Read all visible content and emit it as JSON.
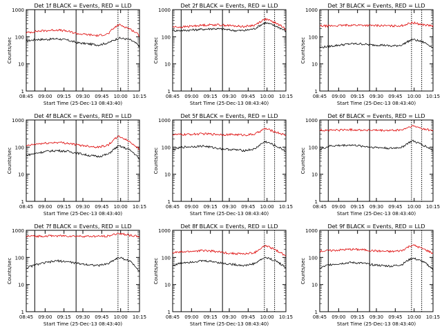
{
  "figure": {
    "xlabel": "Start Time (25-Dec-13 08:43:40)",
    "ylabel": "Counts/sec",
    "colors": {
      "events": "#000000",
      "lld": "#dd0000",
      "axes": "#000000",
      "background": "#ffffff"
    },
    "x_ticks": [
      "08:45",
      "09:00",
      "09:15",
      "09:30",
      "09:45",
      "10:00",
      "10:15"
    ],
    "y_ticks": [
      "1",
      "10",
      "100",
      "1000"
    ]
  },
  "chart_data": [
    {
      "type": "line",
      "title": "Det 1f BLACK = Events, RED = LLD",
      "ylim": [
        1,
        1000
      ],
      "scale": "log",
      "series": [
        {
          "name": "BLACK = Events",
          "values": [
            70,
            80,
            80,
            85,
            75,
            60,
            55,
            50,
            60,
            90,
            80,
            45
          ]
        },
        {
          "name": "RED = LLD",
          "values": [
            140,
            160,
            170,
            180,
            160,
            130,
            120,
            110,
            130,
            280,
            200,
            110
          ]
        }
      ]
    },
    {
      "type": "line",
      "title": "Det 2f BLACK = Events, RED = LLD",
      "ylim": [
        1,
        1000
      ],
      "scale": "log",
      "series": [
        {
          "name": "BLACK = Events",
          "values": [
            170,
            170,
            180,
            190,
            200,
            190,
            170,
            170,
            200,
            330,
            250,
            160
          ]
        },
        {
          "name": "RED = LLD",
          "values": [
            230,
            230,
            250,
            270,
            280,
            270,
            250,
            240,
            270,
            450,
            320,
            190
          ]
        }
      ]
    },
    {
      "type": "line",
      "title": "Det 3f BLACK = Events, RED = LLD",
      "ylim": [
        1,
        1000
      ],
      "scale": "log",
      "series": [
        {
          "name": "BLACK = Events",
          "values": [
            40,
            45,
            50,
            55,
            55,
            50,
            50,
            45,
            50,
            80,
            65,
            40
          ]
        },
        {
          "name": "RED = LLD",
          "values": [
            250,
            250,
            260,
            270,
            270,
            260,
            260,
            250,
            260,
            330,
            280,
            250
          ]
        }
      ]
    },
    {
      "type": "line",
      "title": "Det 4f BLACK = Events, RED = LLD",
      "ylim": [
        1,
        1000
      ],
      "scale": "log",
      "series": [
        {
          "name": "BLACK = Events",
          "values": [
            50,
            60,
            70,
            75,
            70,
            60,
            50,
            45,
            55,
            110,
            80,
            35
          ]
        },
        {
          "name": "RED = LLD",
          "values": [
            110,
            130,
            140,
            150,
            140,
            120,
            110,
            100,
            120,
            250,
            160,
            80
          ]
        }
      ]
    },
    {
      "type": "line",
      "title": "Det 5f BLACK = Events, RED = LLD",
      "ylim": [
        1,
        1000
      ],
      "scale": "log",
      "series": [
        {
          "name": "BLACK = Events",
          "values": [
            80,
            100,
            105,
            110,
            95,
            85,
            80,
            75,
            85,
            160,
            110,
            70
          ]
        },
        {
          "name": "RED = LLD",
          "values": [
            290,
            290,
            300,
            310,
            300,
            290,
            290,
            280,
            300,
            480,
            360,
            270
          ]
        }
      ]
    },
    {
      "type": "line",
      "title": "Det 6f BLACK = Events, RED = LLD",
      "ylim": [
        1,
        1000
      ],
      "scale": "log",
      "series": [
        {
          "name": "BLACK = Events",
          "values": [
            80,
            110,
            115,
            120,
            110,
            100,
            95,
            90,
            100,
            170,
            120,
            75
          ]
        },
        {
          "name": "RED = LLD",
          "values": [
            420,
            420,
            430,
            440,
            430,
            420,
            410,
            410,
            430,
            600,
            480,
            400
          ]
        }
      ]
    },
    {
      "type": "line",
      "title": "Det 7f BLACK = Events, RED = LLD",
      "ylim": [
        1,
        1000
      ],
      "scale": "log",
      "series": [
        {
          "name": "BLACK = Events",
          "values": [
            40,
            55,
            65,
            75,
            70,
            60,
            55,
            50,
            60,
            100,
            75,
            30
          ]
        },
        {
          "name": "RED = LLD",
          "values": [
            600,
            610,
            620,
            630,
            620,
            610,
            600,
            600,
            620,
            780,
            660,
            580
          ]
        }
      ]
    },
    {
      "type": "line",
      "title": "Det 8f BLACK = Events, RED = LLD",
      "ylim": [
        1,
        1000
      ],
      "scale": "log",
      "series": [
        {
          "name": "BLACK = Events",
          "values": [
            50,
            65,
            70,
            75,
            70,
            60,
            55,
            50,
            60,
            100,
            75,
            40
          ]
        },
        {
          "name": "RED = LLD",
          "values": [
            150,
            160,
            170,
            180,
            170,
            150,
            140,
            135,
            150,
            270,
            190,
            110
          ]
        }
      ]
    },
    {
      "type": "line",
      "title": "Det 9f BLACK = Events, RED = LLD",
      "ylim": [
        1,
        1000
      ],
      "scale": "log",
      "series": [
        {
          "name": "BLACK = Events",
          "values": [
            40,
            55,
            60,
            65,
            62,
            55,
            50,
            48,
            55,
            95,
            70,
            35
          ]
        },
        {
          "name": "RED = LLD",
          "values": [
            170,
            180,
            190,
            200,
            195,
            180,
            170,
            165,
            180,
            290,
            210,
            140
          ]
        }
      ]
    }
  ]
}
